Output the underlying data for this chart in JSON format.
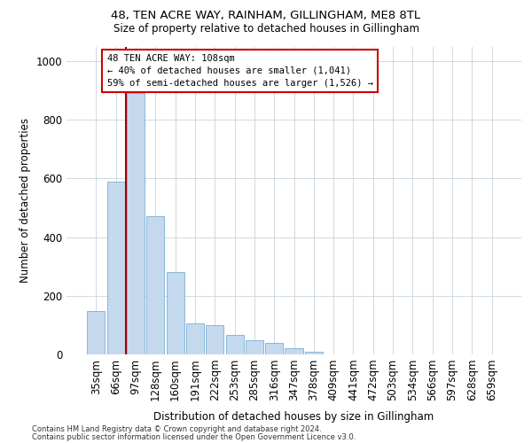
{
  "title1": "48, TEN ACRE WAY, RAINHAM, GILLINGHAM, ME8 8TL",
  "title2": "Size of property relative to detached houses in Gillingham",
  "xlabel": "Distribution of detached houses by size in Gillingham",
  "ylabel": "Number of detached properties",
  "annotation_line1": "48 TEN ACRE WAY: 108sqm",
  "annotation_line2": "← 40% of detached houses are smaller (1,041)",
  "annotation_line3": "59% of semi-detached houses are larger (1,526) →",
  "footer1": "Contains HM Land Registry data © Crown copyright and database right 2024.",
  "footer2": "Contains public sector information licensed under the Open Government Licence v3.0.",
  "bar_color": "#c5d9ee",
  "bar_edge_color": "#7aafd4",
  "grid_color": "#d0d8e0",
  "vline_color": "#aa0000",
  "annotation_edge_color": "#cc0000",
  "categories": [
    "35sqm",
    "66sqm",
    "97sqm",
    "128sqm",
    "160sqm",
    "191sqm",
    "222sqm",
    "253sqm",
    "285sqm",
    "316sqm",
    "347sqm",
    "378sqm",
    "409sqm",
    "441sqm",
    "472sqm",
    "503sqm",
    "534sqm",
    "566sqm",
    "597sqm",
    "628sqm",
    "659sqm"
  ],
  "values": [
    148,
    590,
    890,
    470,
    280,
    105,
    100,
    65,
    48,
    40,
    20,
    8,
    0,
    0,
    0,
    0,
    0,
    0,
    0,
    0,
    0
  ],
  "ylim": [
    0,
    1050
  ],
  "yticks": [
    0,
    200,
    400,
    600,
    800,
    1000
  ],
  "vline_x": 1.5
}
